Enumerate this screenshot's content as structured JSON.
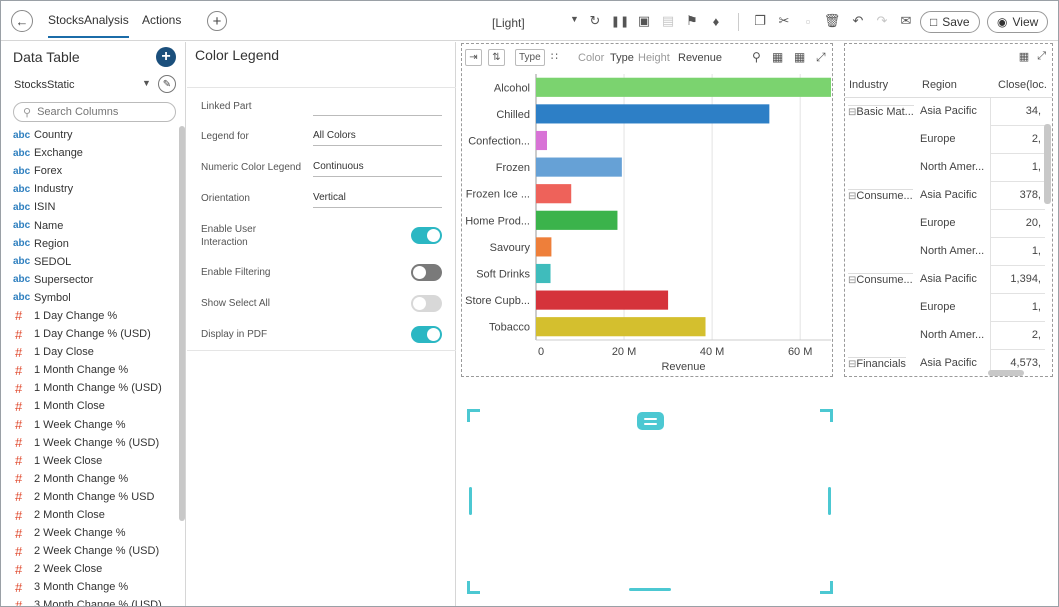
{
  "topbar": {
    "tabs": [
      {
        "label": "StocksAnalysis",
        "active": true
      },
      {
        "label": "Actions",
        "active": false
      }
    ],
    "theme": "[Light]",
    "save_label": "Save",
    "view_label": "View"
  },
  "data_table": {
    "title": "Data Table",
    "datasource": "StocksStatic",
    "search_placeholder": "Search Columns",
    "columns": [
      {
        "type": "abc",
        "name": "Country"
      },
      {
        "type": "abc",
        "name": "Exchange"
      },
      {
        "type": "abc",
        "name": "Forex"
      },
      {
        "type": "abc",
        "name": "Industry"
      },
      {
        "type": "abc",
        "name": "ISIN"
      },
      {
        "type": "abc",
        "name": "Name"
      },
      {
        "type": "abc",
        "name": "Region"
      },
      {
        "type": "abc",
        "name": "SEDOL"
      },
      {
        "type": "abc",
        "name": "Supersector"
      },
      {
        "type": "abc",
        "name": "Symbol"
      },
      {
        "type": "#",
        "name": "1 Day Change %"
      },
      {
        "type": "#",
        "name": "1 Day Change % (USD)"
      },
      {
        "type": "#",
        "name": "1 Day Close"
      },
      {
        "type": "#",
        "name": "1 Month Change %"
      },
      {
        "type": "#",
        "name": "1 Month Change % (USD)"
      },
      {
        "type": "#",
        "name": "1 Month Close"
      },
      {
        "type": "#",
        "name": "1 Week Change %"
      },
      {
        "type": "#",
        "name": "1 Week Change % (USD)"
      },
      {
        "type": "#",
        "name": "1 Week Close"
      },
      {
        "type": "#",
        "name": "2 Month Change %"
      },
      {
        "type": "#",
        "name": "2 Month Change % USD"
      },
      {
        "type": "#",
        "name": "2 Month Close"
      },
      {
        "type": "#",
        "name": "2 Week Change %"
      },
      {
        "type": "#",
        "name": "2 Week Change % (USD)"
      },
      {
        "type": "#",
        "name": "2 Week Close"
      },
      {
        "type": "#",
        "name": "3 Month Change %"
      },
      {
        "type": "#",
        "name": "3 Month Change % (USD)"
      }
    ]
  },
  "color_legend": {
    "title": "Color Legend",
    "linked_part_label": "Linked Part",
    "linked_part_value": "",
    "legend_for_label": "Legend for",
    "legend_for_value": "All Colors",
    "numeric_color_legend_label": "Numeric Color Legend",
    "numeric_color_legend_value": "Continuous",
    "orientation_label": "Orientation",
    "orientation_value": "Vertical",
    "enable_user_interaction_label_1": "Enable User",
    "enable_user_interaction_label_2": "Interaction",
    "enable_user_interaction": true,
    "enable_filtering_label": "Enable Filtering",
    "enable_filtering": false,
    "show_select_all_label": "Show Select All",
    "show_select_all": false,
    "display_in_pdf_label": "Display in PDF",
    "display_in_pdf": true
  },
  "chart_toolbar": {
    "type_button": "Type",
    "color_label": "Color",
    "color_value": "Type",
    "height_label": "Height",
    "height_value": "Revenue"
  },
  "chart_data": {
    "type": "bar",
    "orientation": "horizontal",
    "categories": [
      "Alcohol",
      "Chilled",
      "Confection...",
      "Frozen",
      "Frozen Ice ...",
      "Home Prod...",
      "Savoury",
      "Soft Drinks",
      "Store Cupb...",
      "Tobacco"
    ],
    "values": [
      67000000,
      53000000,
      2500000,
      19500000,
      8000000,
      18500000,
      3500000,
      3300000,
      30000000,
      38500000
    ],
    "colors": [
      "#7bd36f",
      "#2d7fc6",
      "#d873d6",
      "#66a1d6",
      "#ee625a",
      "#3bb34b",
      "#ee7f3a",
      "#3fbcbc",
      "#d5333b",
      "#d4bf2e"
    ],
    "xlabel": "Revenue",
    "xlim": [
      0,
      67000000
    ],
    "xticks": [
      0,
      20000000,
      40000000,
      60000000
    ],
    "xtick_labels": [
      "0",
      "20 M",
      "40 M",
      "60 M"
    ],
    "grid": true
  },
  "pivot_table": {
    "headers": [
      "Industry",
      "Region",
      "Close(loc."
    ],
    "rows": [
      {
        "industry": "Basic Mat...",
        "region": "Asia Pacific",
        "value": "34,"
      },
      {
        "industry": "",
        "region": "Europe",
        "value": "2,"
      },
      {
        "industry": "",
        "region": "North Amer...",
        "value": "1,"
      },
      {
        "industry": "Consume...",
        "region": "Asia Pacific",
        "value": "378,"
      },
      {
        "industry": "",
        "region": "Europe",
        "value": "20,"
      },
      {
        "industry": "",
        "region": "North Amer...",
        "value": "1,"
      },
      {
        "industry": "Consume...",
        "region": "Asia Pacific",
        "value": "1,394,"
      },
      {
        "industry": "",
        "region": "Europe",
        "value": "1,"
      },
      {
        "industry": "",
        "region": "North Amer...",
        "value": "2,"
      },
      {
        "industry": "Financials",
        "region": "Asia Pacific",
        "value": "4,573,"
      }
    ]
  }
}
